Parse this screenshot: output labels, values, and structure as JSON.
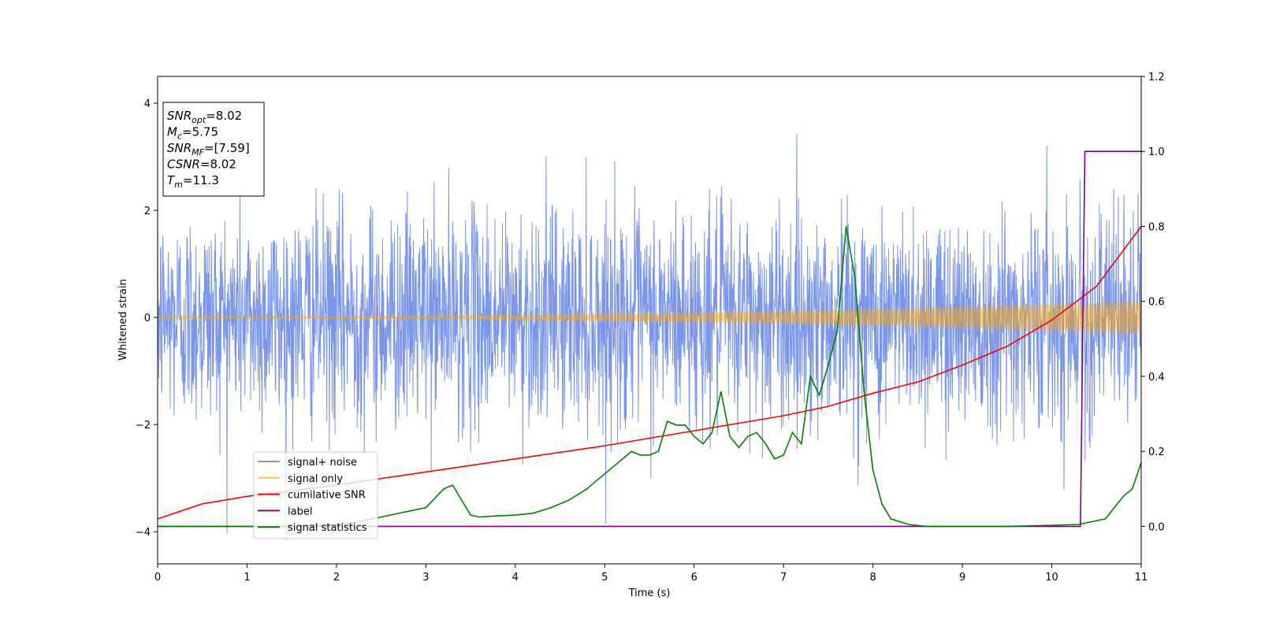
{
  "chart_data": {
    "type": "line",
    "xlabel": "Time (s)",
    "ylabel": "Whitened strain",
    "xlim": [
      0,
      11
    ],
    "ylim": [
      -4.6,
      4.5
    ],
    "y2lim": [
      -0.1,
      1.2
    ],
    "xticks": [
      0,
      1,
      2,
      3,
      4,
      5,
      6,
      7,
      8,
      9,
      10,
      11
    ],
    "yticks": [
      -4,
      -2,
      0,
      2,
      4
    ],
    "y2ticks": [
      0.0,
      0.2,
      0.4,
      0.6,
      0.8,
      1.0,
      1.2
    ],
    "grid": false,
    "legend_position": "lower-left",
    "info_box": [
      {
        "base": "SNR",
        "sub": "opt",
        "value": "=8.02"
      },
      {
        "base": "M",
        "sub": "c",
        "value": "=5.75"
      },
      {
        "base": "SNR",
        "sub": "MF",
        "value": "=[7.59]"
      },
      {
        "base": "CSNR",
        "sub": "",
        "value": "=8.02"
      },
      {
        "base": "T",
        "sub": "m",
        "value": "=11.3"
      }
    ],
    "series": [
      {
        "name": "signal+ noise",
        "axis": "left",
        "color": "#4169e1",
        "kind": "noise",
        "sigma": 1.0,
        "sample_interval": 0.004,
        "range_approx": [
          -4.15,
          4.0
        ]
      },
      {
        "name": "signal only",
        "axis": "left",
        "color": "#ffa500",
        "kind": "chirp_envelope",
        "amplitude_start": 0.02,
        "amplitude_end": 0.3
      },
      {
        "name": "cumilative SNR",
        "axis": "right",
        "color": "#ff0000",
        "x": [
          0,
          0.5,
          1,
          2,
          3,
          4,
          5,
          6,
          7,
          7.5,
          8,
          8.5,
          9,
          9.5,
          10,
          10.5,
          11
        ],
        "y": [
          0.02,
          0.06,
          0.08,
          0.11,
          0.145,
          0.18,
          0.215,
          0.255,
          0.295,
          0.32,
          0.355,
          0.385,
          0.43,
          0.48,
          0.55,
          0.64,
          0.8
        ]
      },
      {
        "name": "label",
        "axis": "right",
        "color": "#800080",
        "x": [
          0,
          10.32,
          10.37,
          11
        ],
        "y": [
          0,
          0,
          1.0,
          1.0
        ]
      },
      {
        "name": "signal statistics",
        "axis": "right",
        "color": "#008000",
        "x": [
          0,
          0.5,
          1,
          1.5,
          2,
          2.2,
          2.4,
          2.6,
          2.8,
          3.0,
          3.2,
          3.3,
          3.4,
          3.5,
          3.6,
          3.8,
          4.0,
          4.2,
          4.4,
          4.6,
          4.8,
          4.9,
          5.0,
          5.1,
          5.2,
          5.3,
          5.4,
          5.5,
          5.6,
          5.7,
          5.8,
          5.9,
          6.0,
          6.1,
          6.2,
          6.3,
          6.4,
          6.5,
          6.6,
          6.7,
          6.8,
          6.9,
          7.0,
          7.1,
          7.2,
          7.3,
          7.4,
          7.5,
          7.6,
          7.7,
          7.8,
          7.9,
          8.0,
          8.1,
          8.2,
          8.4,
          8.6,
          9.0,
          9.5,
          10.0,
          10.3,
          10.4,
          10.6,
          10.8,
          10.9,
          11.0
        ],
        "y": [
          0.0,
          0.0,
          0.0,
          0.0,
          0.005,
          0.01,
          0.02,
          0.03,
          0.04,
          0.05,
          0.1,
          0.11,
          0.07,
          0.03,
          0.025,
          0.028,
          0.03,
          0.035,
          0.05,
          0.07,
          0.1,
          0.12,
          0.14,
          0.16,
          0.18,
          0.2,
          0.19,
          0.19,
          0.2,
          0.28,
          0.27,
          0.27,
          0.24,
          0.22,
          0.25,
          0.36,
          0.24,
          0.21,
          0.24,
          0.25,
          0.22,
          0.18,
          0.19,
          0.25,
          0.22,
          0.4,
          0.35,
          0.43,
          0.52,
          0.8,
          0.66,
          0.36,
          0.15,
          0.06,
          0.02,
          0.005,
          0.0,
          0.0,
          0.0,
          0.003,
          0.005,
          0.01,
          0.02,
          0.08,
          0.1,
          0.17
        ]
      }
    ]
  }
}
